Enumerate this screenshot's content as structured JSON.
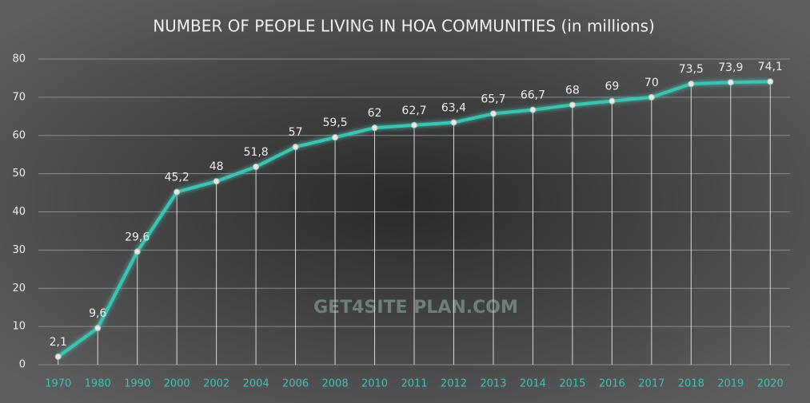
{
  "chart_data": {
    "type": "line",
    "title": "NUMBER OF PEOPLE LIVING IN HOA COMMUNITIES (in millions)",
    "watermark": "GET4SITE PLAN.COM",
    "categories": [
      "1970",
      "1980",
      "1990",
      "2000",
      "2002",
      "2004",
      "2006",
      "2008",
      "2010",
      "2011",
      "2012",
      "2013",
      "2014",
      "2015",
      "2016",
      "2017",
      "2018",
      "2019",
      "2020"
    ],
    "values": [
      2.1,
      9.6,
      29.6,
      45.2,
      48,
      51.8,
      57,
      59.5,
      62,
      62.7,
      63.4,
      65.7,
      66.7,
      68,
      69,
      70,
      73.5,
      73.9,
      74.1
    ],
    "value_labels": [
      "2,1",
      "9,6",
      "29,6",
      "45,2",
      "48",
      "51,8",
      "57",
      "59,5",
      "62",
      "62,7",
      "63,4",
      "65,7",
      "66,7",
      "68",
      "69",
      "70",
      "73,5",
      "73,9",
      "74,1"
    ],
    "color": "#3ec4b1",
    "ylim": [
      0,
      80
    ],
    "yticks": [
      0,
      10,
      20,
      30,
      40,
      50,
      60,
      70,
      80
    ],
    "grid": true
  }
}
